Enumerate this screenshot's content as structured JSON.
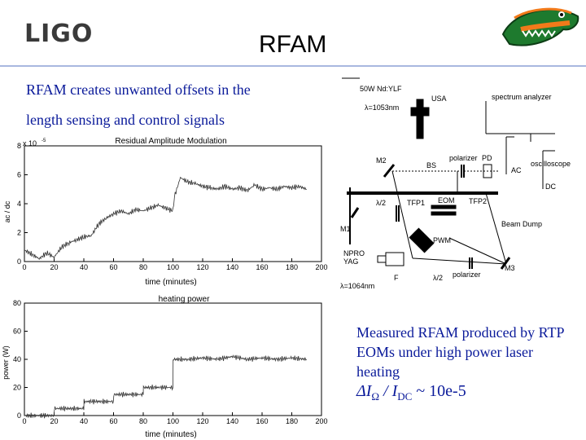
{
  "slide": {
    "logo_text": "LIGO",
    "title": "RFAM",
    "intro_line1": "RFAM creates unwanted offsets in the",
    "intro_line2": "length sensing and control signals",
    "caption": "Measured RFAM produced by RTP EOMs under high power laser heating",
    "formula": {
      "prefix": "ΔI",
      "subscript": "Ω",
      "divider": " / I",
      "subscript2": "DC",
      "suffix": " ~ 10e-5"
    },
    "accent_color": "#0a1a9a"
  },
  "chart_data": [
    {
      "type": "line",
      "title": "Residual Amplitude Modulation",
      "xlabel": "time (minutes)",
      "ylabel": "ac / dc",
      "multiplier": "x 10",
      "multiplier_exp": "-5",
      "xlim": [
        0,
        200
      ],
      "ylim": [
        0,
        8
      ],
      "xticks": [
        "0",
        "20",
        "40",
        "60",
        "80",
        "100",
        "120",
        "140",
        "160",
        "180",
        "200"
      ],
      "yticks": [
        "0",
        "2",
        "4",
        "6",
        "8"
      ],
      "series": [
        {
          "x": [
            0,
            10,
            15,
            20,
            25,
            30,
            35,
            40,
            45,
            50,
            55,
            60,
            65,
            70,
            75,
            80,
            85,
            90,
            95,
            100,
            101,
            105,
            110,
            115,
            120,
            125,
            130,
            135,
            140,
            145,
            150,
            155,
            160,
            165,
            170,
            175,
            180,
            185,
            190
          ],
          "y": [
            0.8,
            0.2,
            0.6,
            0.3,
            1.0,
            1.3,
            1.5,
            1.7,
            1.8,
            2.6,
            3.0,
            3.3,
            3.5,
            3.3,
            3.6,
            3.5,
            3.7,
            3.9,
            3.7,
            3.5,
            4.5,
            5.8,
            5.5,
            5.4,
            5.2,
            5.1,
            5.0,
            5.2,
            5.0,
            5.1,
            4.9,
            5.3,
            5.0,
            5.1,
            5.0,
            5.2,
            5.1,
            5.2,
            5.0
          ]
        }
      ]
    },
    {
      "type": "line",
      "title": "heating power",
      "xlabel": "time (minutes)",
      "ylabel": "power (W)",
      "xlim": [
        0,
        200
      ],
      "ylim": [
        0,
        80
      ],
      "xticks": [
        "0",
        "20",
        "40",
        "60",
        "80",
        "100",
        "120",
        "140",
        "160",
        "180",
        "200"
      ],
      "yticks": [
        "0",
        "20",
        "40",
        "60",
        "80"
      ],
      "series": [
        {
          "x": [
            0,
            20,
            20.1,
            40,
            40.1,
            60,
            60.1,
            80,
            80.1,
            100,
            100.1,
            110,
            120,
            130,
            140,
            150,
            160,
            170,
            180,
            190
          ],
          "y": [
            0,
            0,
            5,
            5,
            10,
            10,
            15,
            15,
            20,
            20,
            40,
            40,
            41,
            40,
            42,
            40,
            41,
            40,
            41,
            40
          ]
        }
      ]
    }
  ],
  "diagram": {
    "laser": "50W Nd:YLF",
    "laser_wavelength": "λ=1053nm",
    "usa": "USA",
    "spectrum_analyzer": "spectrum analyzer",
    "m2": "M2",
    "bs": "BS",
    "polarizer_top": "polarizer",
    "pd": "PD",
    "ac": "AC",
    "oscilloscope": "oscilloscope",
    "dc": "DC",
    "half_wave_left": "λ/2",
    "tfp1": "TFP1",
    "eom": "EOM",
    "tfp2": "TFP2",
    "beam_dump": "Beam Dump",
    "m1": "M1",
    "pwm": "PWM",
    "nprc": "NPRO",
    "yag": "YAG",
    "f": "F",
    "half_wave_bottom": "λ/2",
    "polarizer_bottom": "polarizer",
    "m3": "M3",
    "source_wavelength": "λ=1064nm"
  }
}
